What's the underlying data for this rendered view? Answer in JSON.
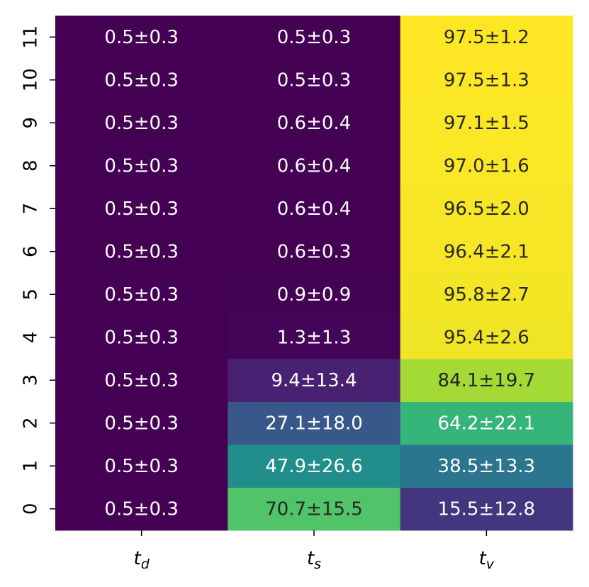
{
  "chart_data": {
    "type": "heatmap",
    "colormap": "viridis",
    "categories": [
      "0",
      "1",
      "2",
      "3",
      "4",
      "5",
      "6",
      "7",
      "8",
      "9",
      "10",
      "11"
    ],
    "series": [
      {
        "name": "t_d",
        "values": [
          0.5,
          0.5,
          0.5,
          0.5,
          0.5,
          0.5,
          0.5,
          0.5,
          0.5,
          0.5,
          0.5,
          0.5
        ],
        "errors": [
          0.3,
          0.3,
          0.3,
          0.3,
          0.3,
          0.3,
          0.3,
          0.3,
          0.3,
          0.3,
          0.3,
          0.3
        ],
        "value_labels": [
          "0.5±0.3",
          "0.5±0.3",
          "0.5±0.3",
          "0.5±0.3",
          "0.5±0.3",
          "0.5±0.3",
          "0.5±0.3",
          "0.5±0.3",
          "0.5±0.3",
          "0.5±0.3",
          "0.5±0.3",
          "0.5±0.3"
        ]
      },
      {
        "name": "t_s",
        "values": [
          70.7,
          47.9,
          27.1,
          9.4,
          1.3,
          0.9,
          0.6,
          0.6,
          0.6,
          0.6,
          0.5,
          0.5
        ],
        "errors": [
          15.5,
          26.6,
          18.0,
          13.4,
          1.3,
          0.9,
          0.3,
          0.4,
          0.4,
          0.4,
          0.3,
          0.3
        ],
        "value_labels": [
          "70.7±15.5",
          "47.9±26.6",
          "27.1±18.0",
          "9.4±13.4",
          "1.3±1.3",
          "0.9±0.9",
          "0.6±0.3",
          "0.6±0.4",
          "0.6±0.4",
          "0.6±0.4",
          "0.5±0.3",
          "0.5±0.3"
        ]
      },
      {
        "name": "t_v",
        "values": [
          15.5,
          38.5,
          64.2,
          84.1,
          95.4,
          95.8,
          96.4,
          96.5,
          97.0,
          97.1,
          97.5,
          97.5
        ],
        "errors": [
          12.8,
          13.3,
          22.1,
          19.7,
          2.6,
          2.7,
          2.1,
          2.0,
          1.6,
          1.5,
          1.3,
          1.2
        ],
        "value_labels": [
          "15.5±12.8",
          "38.5±13.3",
          "64.2±22.1",
          "84.1±19.7",
          "95.4±2.6",
          "95.8±2.7",
          "96.4±2.1",
          "96.5±2.0",
          "97.0±1.6",
          "97.1±1.5",
          "97.5±1.3",
          "97.5±1.2"
        ]
      }
    ]
  }
}
